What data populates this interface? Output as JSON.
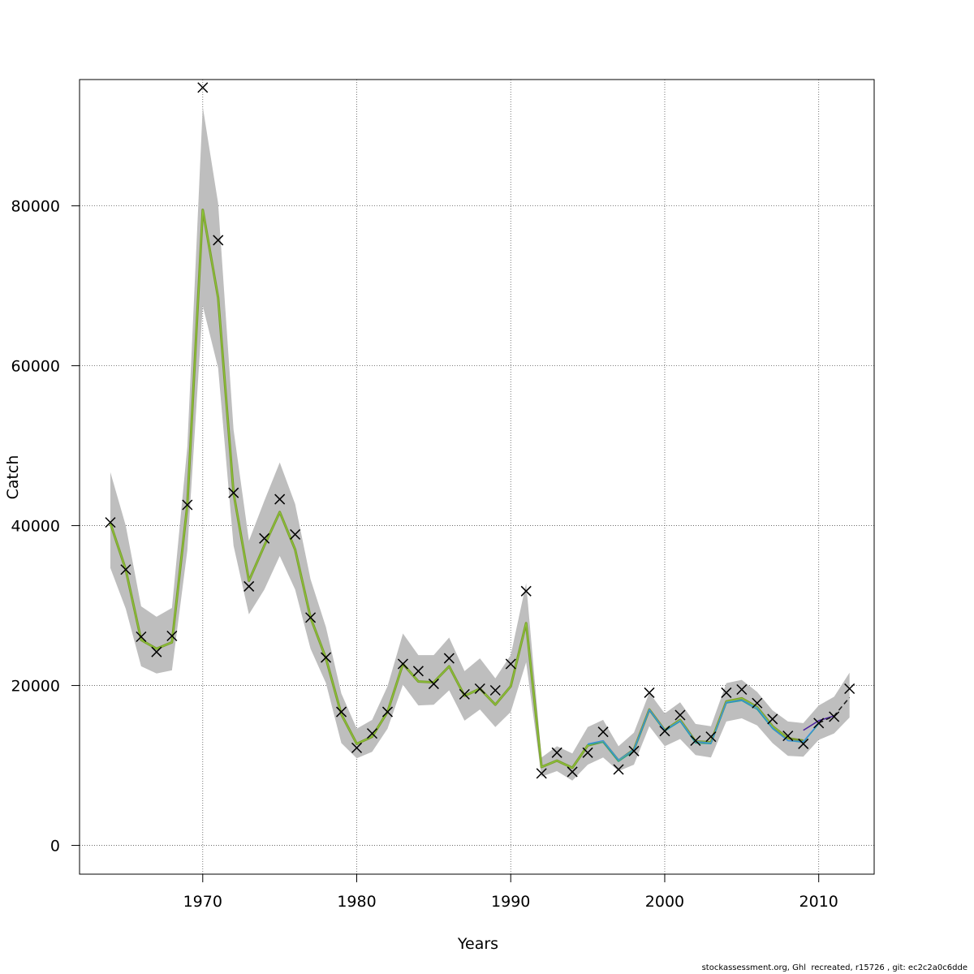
{
  "footer_text": "stockassessment.org, Ghl  recreated, r15726 , git: ec2c2a0c6dde",
  "chart_data": {
    "type": "line",
    "title": "",
    "xlabel": "Years",
    "ylabel": "Catch",
    "xlim": [
      1962.0,
      2013.6
    ],
    "ylim": [
      -3600,
      95800
    ],
    "x_ticks": [
      1970,
      1980,
      1990,
      2000,
      2010
    ],
    "y_ticks": [
      0,
      20000,
      40000,
      60000,
      80000
    ],
    "grid": true,
    "band_color": "#bebebe",
    "observed_marker": "x",
    "observed": {
      "years": [
        1964,
        1965,
        1966,
        1967,
        1968,
        1969,
        1970,
        1971,
        1972,
        1973,
        1974,
        1975,
        1976,
        1977,
        1978,
        1979,
        1980,
        1981,
        1982,
        1983,
        1984,
        1985,
        1986,
        1987,
        1988,
        1989,
        1990,
        1991,
        1992,
        1993,
        1994,
        1995,
        1996,
        1997,
        1998,
        1999,
        2000,
        2001,
        2002,
        2003,
        2004,
        2005,
        2006,
        2007,
        2008,
        2009,
        2010,
        2011,
        2012
      ],
      "values": [
        40400,
        34500,
        26100,
        24200,
        26200,
        42600,
        94800,
        75700,
        44100,
        32400,
        38400,
        43300,
        38900,
        28500,
        23500,
        16700,
        12200,
        14000,
        16700,
        22700,
        21800,
        20200,
        23400,
        18900,
        19600,
        19400,
        22700,
        31800,
        9000,
        11600,
        9200,
        11600,
        14200,
        9500,
        11800,
        19100,
        14300,
        16300,
        13100,
        13600,
        19100,
        19500,
        17800,
        15800,
        13700,
        12700,
        15300,
        16100,
        19600
      ]
    },
    "band": {
      "years": [
        1964,
        1965,
        1966,
        1967,
        1968,
        1969,
        1970,
        1971,
        1972,
        1973,
        1974,
        1975,
        1976,
        1977,
        1978,
        1979,
        1980,
        1981,
        1982,
        1983,
        1984,
        1985,
        1986,
        1987,
        1988,
        1989,
        1990,
        1991,
        1992,
        1993,
        1994,
        1995,
        1996,
        1997,
        1998,
        1999,
        2000,
        2001,
        2002,
        2003,
        2004,
        2005,
        2006,
        2007,
        2008,
        2009,
        2010,
        2011,
        2012
      ],
      "lower": [
        34700,
        29600,
        22400,
        21500,
        21900,
        36900,
        67500,
        59700,
        37500,
        28900,
        32000,
        36200,
        32000,
        24600,
        20300,
        12800,
        10900,
        11700,
        14600,
        20100,
        17500,
        17600,
        19400,
        15600,
        17000,
        14800,
        16700,
        22900,
        8600,
        9300,
        8100,
        10100,
        11000,
        9300,
        10100,
        14900,
        12400,
        13300,
        11300,
        11000,
        15500,
        15900,
        15000,
        12800,
        11200,
        11100,
        13200,
        14000,
        16000
      ],
      "upper": [
        46700,
        40000,
        29900,
        28600,
        29700,
        49900,
        92400,
        80300,
        52000,
        38100,
        43100,
        47900,
        42700,
        33300,
        27300,
        19000,
        14600,
        15700,
        19900,
        26500,
        23800,
        23800,
        26000,
        21800,
        23400,
        20900,
        23800,
        32800,
        11000,
        12400,
        11500,
        14800,
        15700,
        12400,
        14100,
        19100,
        16500,
        17900,
        15200,
        14900,
        20300,
        20700,
        19200,
        16900,
        15500,
        15300,
        17500,
        18600,
        21600
      ]
    },
    "series": [
      {
        "name": "",
        "color": "#7a9a2e",
        "years": [
          1964,
          1965,
          1966,
          1967,
          1968,
          1969,
          1970,
          1971,
          1972,
          1973,
          1974,
          1975,
          1976,
          1977,
          1978,
          1979,
          1980,
          1981,
          1982,
          1983,
          1984,
          1985,
          1986,
          1987,
          1988,
          1989,
          1990,
          1991,
          1992,
          1993,
          1994,
          1995,
          1996,
          1997,
          1998,
          1999,
          2000,
          2001,
          2002,
          2003,
          2004,
          2005,
          2006,
          2007,
          2008,
          2009
        ],
        "values": [
          40300,
          34500,
          25700,
          24600,
          25400,
          42600,
          79500,
          68500,
          44100,
          33100,
          37500,
          41700,
          37000,
          28500,
          23400,
          16400,
          12700,
          13600,
          16700,
          22700,
          20500,
          20400,
          22400,
          18700,
          19600,
          17600,
          19900,
          27800,
          9800,
          10600,
          9700,
          12500,
          13000,
          10600,
          12000,
          17000,
          14400,
          15700,
          13000,
          12900,
          18000,
          18400,
          17300,
          14900,
          13400,
          13100
        ],
        "stroke_width": 3
      },
      {
        "name": "",
        "color": "#8fcc3a",
        "years": [
          1964,
          1965,
          1966,
          1967,
          1968,
          1969,
          1970,
          1971,
          1972,
          1973,
          1974,
          1975,
          1976,
          1977,
          1978,
          1979,
          1980,
          1981,
          1982,
          1983,
          1984,
          1985,
          1986,
          1987,
          1988,
          1989,
          1990,
          1991,
          1992,
          1993,
          1994,
          1995,
          1996,
          1997,
          1998,
          1999,
          2000,
          2001,
          2002,
          2003,
          2004,
          2005,
          2006,
          2007,
          2008
        ],
        "values": [
          40300,
          34500,
          25700,
          24600,
          25400,
          42600,
          79500,
          68500,
          44100,
          33100,
          37500,
          41700,
          37000,
          28500,
          23400,
          16400,
          12700,
          13600,
          16700,
          22700,
          20500,
          20400,
          22400,
          18700,
          19600,
          17600,
          19900,
          27800,
          9800,
          10600,
          9700,
          12500,
          13000,
          10600,
          12000,
          17000,
          14400,
          15700,
          13000,
          12900,
          18000,
          18400,
          17300,
          14900,
          13400
        ],
        "stroke_width": 1
      },
      {
        "name": "",
        "color": "#2aa198",
        "years": [
          1995,
          1996,
          1997,
          1998,
          1999,
          2000,
          2001,
          2002,
          2003,
          2004,
          2005,
          2006,
          2007,
          2008,
          2009,
          2010
        ],
        "values": [
          12600,
          12900,
          10500,
          11800,
          16900,
          14300,
          15500,
          12800,
          12700,
          17800,
          18100,
          17000,
          14600,
          13100,
          12900,
          15200
        ],
        "stroke_width": 1.2
      },
      {
        "name": "",
        "color": "#3a8ee6",
        "years": [
          1995,
          1996,
          1997,
          1998,
          1999,
          2000,
          2001,
          2002,
          2003,
          2004,
          2005,
          2006,
          2007,
          2008,
          2009,
          2010
        ],
        "values": [
          12700,
          13100,
          10700,
          12000,
          17000,
          14400,
          15600,
          13000,
          12800,
          17900,
          18200,
          17200,
          14700,
          13100,
          13000,
          15300
        ],
        "stroke_width": 1.2
      },
      {
        "name": "",
        "color": "#4b1fa0",
        "years": [
          2009,
          2010,
          2011
        ],
        "values": [
          14400,
          15600,
          16200
        ],
        "stroke_width": 1.5
      },
      {
        "name": "",
        "color": "#1a1a1a",
        "years": [
          2010,
          2011,
          2012
        ],
        "values": [
          15300,
          16200,
          18500
        ],
        "stroke_width": 1.5,
        "dashed": true
      }
    ]
  }
}
